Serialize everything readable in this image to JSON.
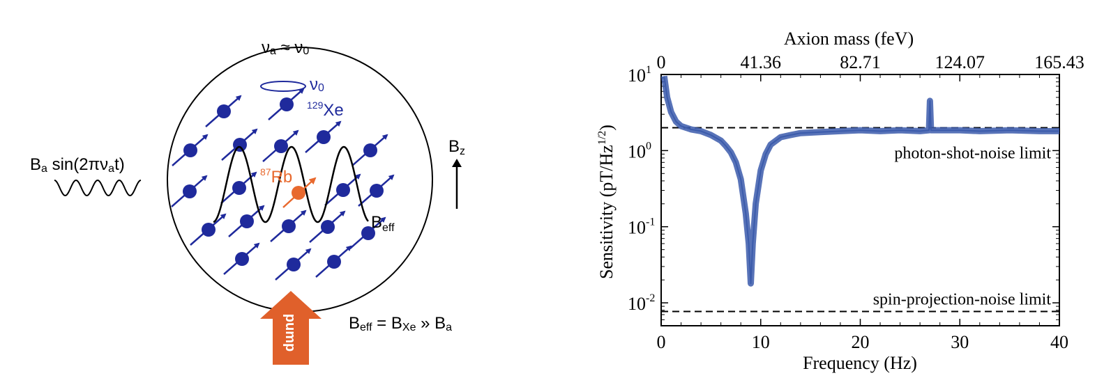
{
  "diagram": {
    "freq_condition": {
      "a": "ν",
      "a_sub": "a",
      "approx": " ≈ ",
      "b": "ν",
      "b_sub": "0"
    },
    "precession_label": {
      "main": "ν",
      "sub": "0"
    },
    "xe_label": {
      "sup": "129",
      "main": "Xe"
    },
    "rb_label": {
      "sup": "87",
      "main": "Rb"
    },
    "drive_label": {
      "B": "B",
      "a": "a",
      "rest1": " sin(2π",
      "nu": "ν",
      "a2": "a",
      "rest2": "t)"
    },
    "bz_label": {
      "B": "B",
      "sub": "z"
    },
    "beff_label": {
      "B": "B",
      "sub": "eff"
    },
    "pump_label": "pump",
    "equation": {
      "b1": "B",
      "s1": "eff",
      "eq": " = ",
      "b2": "B",
      "s2": "Xe",
      "gg": " » ",
      "b3": "B",
      "s3": "a"
    },
    "colors": {
      "xe": "#1f2a9c",
      "rb": "#e8692e",
      "pump": "#e0602b",
      "line": "#000000"
    }
  },
  "chart_data": {
    "type": "line",
    "xlabel": "Frequency (Hz)",
    "ylabel_main": "Sensitivity (pT/Hz",
    "ylabel_sup": "1/2",
    "ylabel_end": ")",
    "top_xlabel": "Axion mass (feV)",
    "xlim": [
      0,
      40
    ],
    "ylim": [
      0.005,
      10
    ],
    "yscale": "log",
    "x_ticks": [
      "0",
      "10",
      "20",
      "30",
      "40"
    ],
    "x_tick_values": [
      0,
      10,
      20,
      30,
      40
    ],
    "top_ticks": [
      "0",
      "41.36",
      "82.71",
      "124.07",
      "165.43"
    ],
    "top_tick_values": [
      0,
      10,
      20,
      30,
      40
    ],
    "y_ticks": [
      {
        "base": "10",
        "exp": "1",
        "value": 10
      },
      {
        "base": "10",
        "exp": "0",
        "value": 1
      },
      {
        "base": "10",
        "exp": "-1",
        "value": 0.1
      },
      {
        "base": "10",
        "exp": "-2",
        "value": 0.01
      }
    ],
    "series": [
      {
        "color": "#3b5bab",
        "x": [
          0.3,
          0.6,
          1.0,
          1.5,
          2.0,
          3.0,
          4.0,
          5.0,
          6.0,
          6.5,
          7.0,
          7.5,
          8.0,
          8.5,
          8.8,
          9.0,
          9.2,
          9.5,
          10.0,
          10.5,
          11.0,
          12.0,
          13.0,
          14.0,
          16.0,
          18.0,
          20.0,
          22.0,
          24.0,
          26.0,
          26.9,
          27.0,
          27.1,
          28.0,
          30.0,
          32.0,
          35.0,
          38.0,
          40.0
        ],
        "y": [
          9.5,
          5.0,
          3.2,
          2.4,
          2.1,
          1.9,
          1.8,
          1.6,
          1.35,
          1.15,
          0.95,
          0.7,
          0.42,
          0.15,
          0.06,
          0.018,
          0.06,
          0.2,
          0.55,
          0.9,
          1.2,
          1.5,
          1.6,
          1.7,
          1.75,
          1.8,
          1.85,
          1.8,
          1.85,
          1.8,
          1.85,
          4.5,
          1.85,
          1.85,
          1.85,
          1.8,
          1.85,
          1.8,
          1.8
        ]
      }
    ],
    "reference_lines": [
      {
        "value": 2.0,
        "label": "photon-shot-noise limit"
      },
      {
        "value": 0.0077,
        "label": "spin-projection-noise limit"
      }
    ]
  }
}
